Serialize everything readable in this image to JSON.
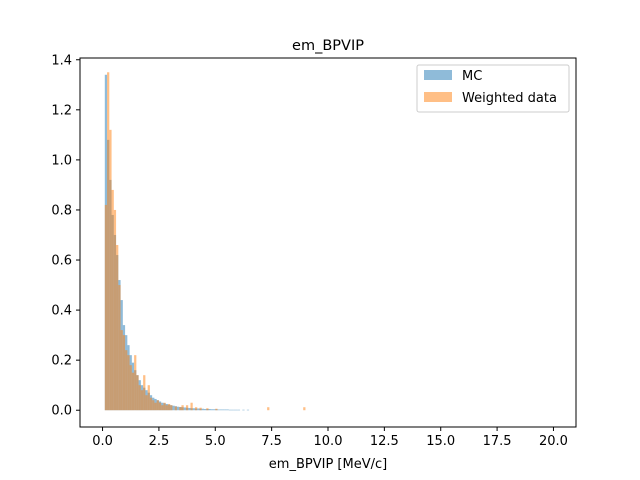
{
  "chart_data": {
    "type": "bar",
    "title": "em_BPVIP",
    "xlabel": "em_BPVIP [MeV/c]",
    "ylabel": "",
    "xlim": [
      -1.0,
      21.0
    ],
    "ylim": [
      -0.067,
      1.407
    ],
    "xticks": [
      "0.0",
      "2.5",
      "5.0",
      "7.5",
      "10.0",
      "12.5",
      "15.0",
      "17.5",
      "20.0"
    ],
    "xtick_values": [
      0,
      2.5,
      5,
      7.5,
      10,
      12.5,
      15,
      17.5,
      20
    ],
    "yticks": [
      "0.0",
      "0.2",
      "0.4",
      "0.6",
      "0.8",
      "1.0",
      "1.2",
      "1.4"
    ],
    "ytick_values": [
      0,
      0.2,
      0.4,
      0.6,
      0.8,
      1.0,
      1.2,
      1.4
    ],
    "legend_position": "top-right",
    "bin_width": 0.1,
    "series": [
      {
        "name": "MC",
        "color": "#1f77b4",
        "opacity": 0.5,
        "bins": [
          [
            0.1,
            1.34
          ],
          [
            0.2,
            1.08
          ],
          [
            0.3,
            0.92
          ],
          [
            0.4,
            0.78
          ],
          [
            0.5,
            0.7
          ],
          [
            0.6,
            0.62
          ],
          [
            0.7,
            0.52
          ],
          [
            0.8,
            0.44
          ],
          [
            0.9,
            0.34
          ],
          [
            1.0,
            0.3
          ],
          [
            1.1,
            0.26
          ],
          [
            1.2,
            0.22
          ],
          [
            1.3,
            0.19
          ],
          [
            1.4,
            0.16
          ],
          [
            1.5,
            0.14
          ],
          [
            1.6,
            0.12
          ],
          [
            1.7,
            0.1
          ],
          [
            1.8,
            0.09
          ],
          [
            1.9,
            0.08
          ],
          [
            2.0,
            0.07
          ],
          [
            2.1,
            0.06
          ],
          [
            2.2,
            0.05
          ],
          [
            2.3,
            0.045
          ],
          [
            2.4,
            0.04
          ],
          [
            2.5,
            0.035
          ],
          [
            2.6,
            0.03
          ],
          [
            2.7,
            0.028
          ],
          [
            2.8,
            0.025
          ],
          [
            2.9,
            0.022
          ],
          [
            3.0,
            0.02
          ],
          [
            3.1,
            0.018
          ],
          [
            3.2,
            0.016
          ],
          [
            3.3,
            0.014
          ],
          [
            3.4,
            0.013
          ],
          [
            3.5,
            0.012
          ],
          [
            3.6,
            0.011
          ],
          [
            3.7,
            0.01
          ],
          [
            3.8,
            0.009
          ],
          [
            3.9,
            0.008
          ],
          [
            4.0,
            0.008
          ],
          [
            4.1,
            0.007
          ],
          [
            4.2,
            0.007
          ],
          [
            4.3,
            0.006
          ],
          [
            4.4,
            0.006
          ],
          [
            4.5,
            0.005
          ],
          [
            4.6,
            0.005
          ],
          [
            4.7,
            0.005
          ],
          [
            4.8,
            0.004
          ],
          [
            4.9,
            0.004
          ],
          [
            5.0,
            0.004
          ],
          [
            5.1,
            0.003
          ],
          [
            5.2,
            0.003
          ],
          [
            5.3,
            0.003
          ],
          [
            5.4,
            0.003
          ],
          [
            5.5,
            0.003
          ],
          [
            5.6,
            0.002
          ],
          [
            5.7,
            0.002
          ],
          [
            5.8,
            0.002
          ],
          [
            5.9,
            0.002
          ],
          [
            6.0,
            0.002
          ],
          [
            6.2,
            0.002
          ],
          [
            6.4,
            0.002
          ]
        ]
      },
      {
        "name": "Weighted data",
        "color": "#ff7f0e",
        "opacity": 0.5,
        "bins": [
          [
            0.1,
            0.82
          ],
          [
            0.2,
            1.35
          ],
          [
            0.3,
            1.12
          ],
          [
            0.4,
            0.88
          ],
          [
            0.5,
            0.8
          ],
          [
            0.6,
            0.66
          ],
          [
            0.7,
            0.5
          ],
          [
            0.8,
            0.32
          ],
          [
            0.9,
            0.3
          ],
          [
            1.0,
            0.24
          ],
          [
            1.1,
            0.22
          ],
          [
            1.2,
            0.18
          ],
          [
            1.3,
            0.15
          ],
          [
            1.4,
            0.22
          ],
          [
            1.5,
            0.14
          ],
          [
            1.6,
            0.1
          ],
          [
            1.7,
            0.08
          ],
          [
            1.8,
            0.14
          ],
          [
            1.9,
            0.06
          ],
          [
            2.0,
            0.1
          ],
          [
            2.1,
            0.05
          ],
          [
            2.2,
            0.04
          ],
          [
            2.3,
            0.03
          ],
          [
            2.4,
            0.04
          ],
          [
            2.5,
            0.03
          ],
          [
            2.6,
            0.02
          ],
          [
            2.7,
            0.03
          ],
          [
            2.8,
            0.02
          ],
          [
            2.9,
            0.025
          ],
          [
            3.0,
            0.02
          ],
          [
            3.2,
            0.015
          ],
          [
            3.4,
            0.012
          ],
          [
            3.5,
            0.02
          ],
          [
            3.7,
            0.02
          ],
          [
            3.9,
            0.03
          ],
          [
            4.1,
            0.012
          ],
          [
            4.3,
            0.01
          ],
          [
            4.6,
            0.008
          ],
          [
            5.0,
            0.006
          ],
          [
            7.3,
            0.012
          ],
          [
            8.9,
            0.012
          ]
        ]
      }
    ]
  }
}
